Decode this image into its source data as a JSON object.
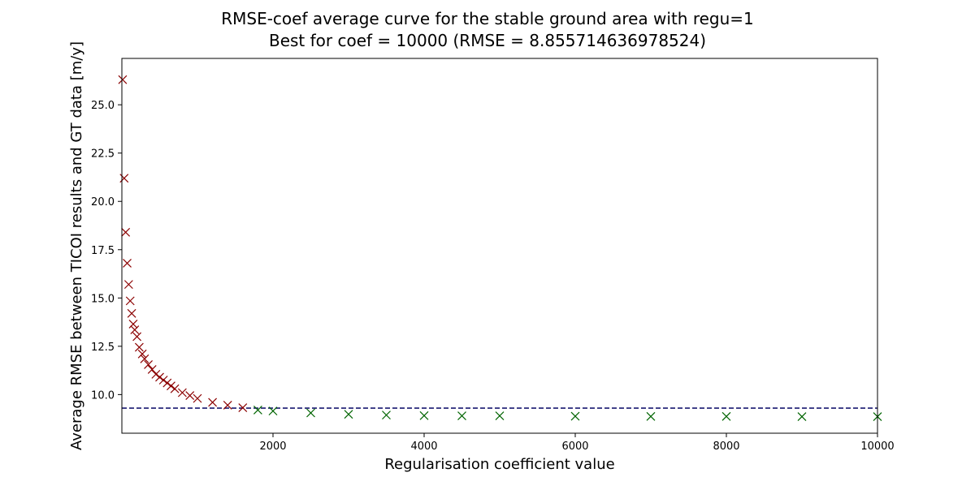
{
  "chart_data": {
    "type": "scatter",
    "title": "RMSE-coef average curve for the stable ground area with regu=1",
    "subtitle": "Best for coef = 10000 (RMSE = 8.855714636978524)",
    "xlabel": "Regularisation coefficient value",
    "ylabel": "Average RMSE between TICOI results and GT data [m/y]",
    "xlim": [
      0,
      10000
    ],
    "ylim": [
      8.0,
      27.4
    ],
    "x_ticks": [
      2000,
      4000,
      6000,
      8000,
      10000
    ],
    "x_tick_labels": [
      "2000",
      "4000",
      "6000",
      "8000",
      "10000"
    ],
    "y_ticks": [
      10.0,
      12.5,
      15.0,
      17.5,
      20.0,
      22.5,
      25.0
    ],
    "y_tick_labels": [
      "10.0",
      "12.5",
      "15.0",
      "17.5",
      "20.0",
      "22.5",
      "25.0"
    ],
    "grid": false,
    "marker": "x",
    "threshold_line": {
      "y": 9.3,
      "style": "dashed",
      "color": "#191970"
    },
    "series": [
      {
        "color": "#8b0000",
        "x": [
          10,
          30,
          50,
          70,
          90,
          110,
          130,
          150,
          170,
          200,
          230,
          270,
          300,
          350,
          400,
          450,
          500,
          550,
          600,
          650,
          700,
          800,
          900,
          1000,
          1200,
          1400,
          1600
        ],
        "y": [
          26.3,
          21.2,
          18.4,
          16.8,
          15.7,
          14.85,
          14.2,
          13.65,
          13.35,
          13.0,
          12.45,
          12.1,
          11.85,
          11.55,
          11.3,
          11.05,
          10.9,
          10.75,
          10.6,
          10.45,
          10.3,
          10.1,
          9.95,
          9.8,
          9.6,
          9.45,
          9.32
        ]
      },
      {
        "color": "#006400",
        "x": [
          1800,
          2000,
          2500,
          3000,
          3500,
          4000,
          4500,
          5000,
          6000,
          7000,
          8000,
          9000,
          10000
        ],
        "y": [
          9.2,
          9.15,
          9.05,
          8.98,
          8.94,
          8.91,
          8.9,
          8.9,
          8.88,
          8.87,
          8.87,
          8.86,
          8.86
        ]
      }
    ]
  }
}
